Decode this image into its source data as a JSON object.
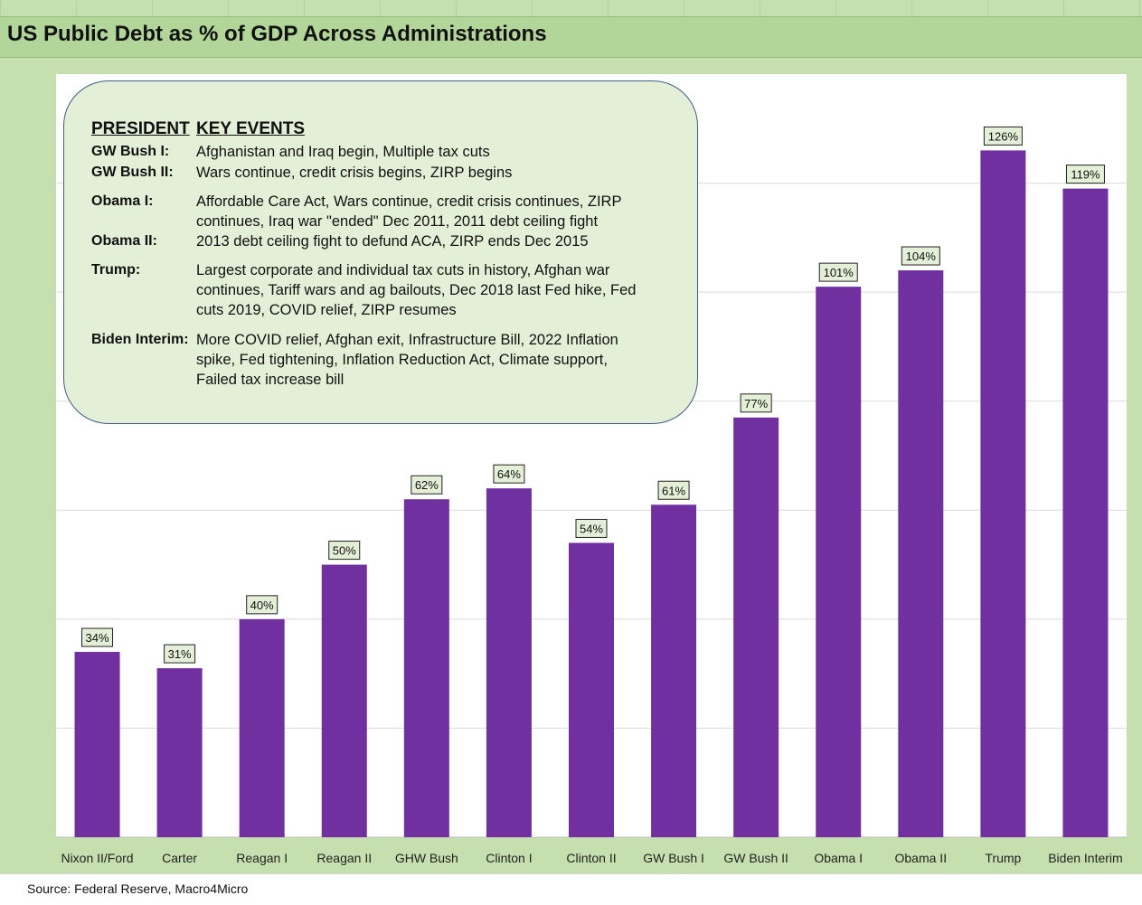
{
  "title": "US Public Debt as % of GDP Across Administrations",
  "source": "Source: Federal Reserve, Macro4Micro",
  "colors": {
    "bar": "#7030a0",
    "background": "#c5dfae",
    "title_band": "#b2d59a",
    "events_box": "#e3efd6",
    "events_border": "#3f5e86",
    "data_label_bg": "#e3efd6"
  },
  "events": {
    "header_president": "PRESIDENT",
    "header_events": "KEY EVENTS",
    "rows": [
      {
        "name": "GW Bush I:",
        "text": "Afghanistan and Iraq begin, Multiple tax cuts"
      },
      {
        "name": "GW Bush II:",
        "text": "Wars continue, credit crisis begins, ZIRP begins"
      },
      {
        "name": "Obama I:",
        "text": "Affordable Care Act, Wars continue, credit crisis continues, ZIRP\ncontinues, Iraq war \"ended\" Dec 2011, 2011 debt ceiling fight"
      },
      {
        "name": "Obama II:",
        "text": "2013 debt ceiling fight to defund ACA, ZIRP ends Dec 2015"
      },
      {
        "name": "Trump:",
        "text": "Largest corporate and individual tax cuts in history, Afghan war\ncontinues, Tariff wars and ag bailouts, Dec 2018 last Fed hike, Fed\ncuts 2019, COVID relief, ZIRP resumes"
      },
      {
        "name": "Biden Interim:",
        "text": "More COVID relief, Afghan exit, Infrastructure Bill, 2022 Inflation\nspike, Fed tightening, Inflation Reduction Act, Climate support,\nFailed tax increase bill"
      }
    ]
  },
  "chart_data": {
    "type": "bar",
    "title": "US Public Debt as % of GDP Across Administrations",
    "categories": [
      "Nixon II/Ford",
      "Carter",
      "Reagan I",
      "Reagan II",
      "GHW Bush",
      "Clinton I",
      "Clinton II",
      "GW Bush I",
      "GW Bush II",
      "Obama I",
      "Obama II",
      "Trump",
      "Biden Interim"
    ],
    "values": [
      34,
      31,
      40,
      50,
      62,
      64,
      54,
      61,
      77,
      101,
      104,
      126,
      119
    ],
    "data_labels": [
      "34%",
      "31%",
      "40%",
      "50%",
      "62%",
      "64%",
      "54%",
      "61%",
      "77%",
      "101%",
      "104%",
      "126%",
      "119%"
    ],
    "ylim": [
      0,
      140
    ],
    "grid": true,
    "xlabel": "",
    "ylabel": ""
  }
}
